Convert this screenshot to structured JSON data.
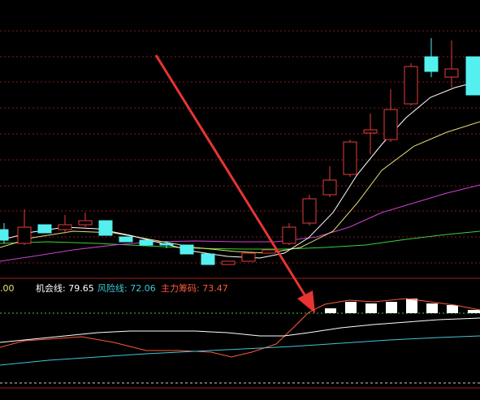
{
  "legend": {
    "prefix": ".00",
    "items": [
      {
        "text": "机会线: 79.65",
        "color": "#ffffff"
      },
      {
        "text": "风险线: 72.06",
        "color": "#3ec8d8"
      },
      {
        "text": "主力筹码: 73.47",
        "color": "#ff5a3a"
      }
    ]
  }
}
